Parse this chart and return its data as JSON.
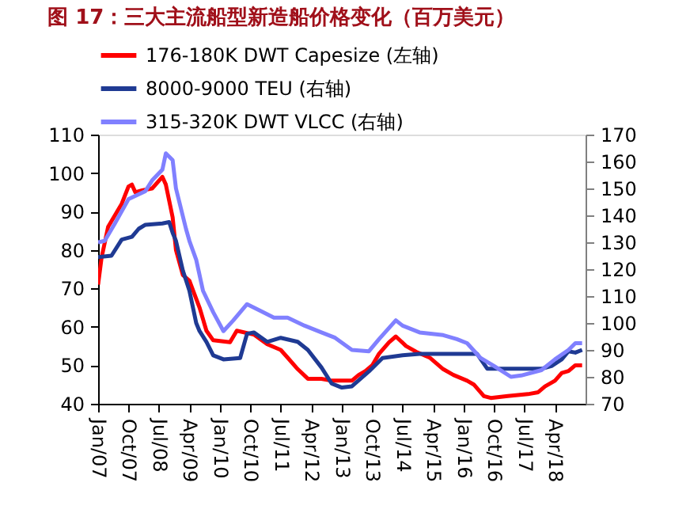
{
  "chart_data": {
    "type": "line",
    "title": "图 17：三大主流船型新造船价格变化（百万美元）",
    "xlim": [
      "2007-01",
      "2019-01"
    ],
    "xticks": [
      {
        "value": "2007-01",
        "label": "Jan/07"
      },
      {
        "value": "2007-10",
        "label": "Oct/07"
      },
      {
        "value": "2008-07",
        "label": "Jul/08"
      },
      {
        "value": "2009-04",
        "label": "Apr/09"
      },
      {
        "value": "2010-01",
        "label": "Jan/10"
      },
      {
        "value": "2010-10",
        "label": "Oct/10"
      },
      {
        "value": "2011-07",
        "label": "Jul/11"
      },
      {
        "value": "2012-04",
        "label": "Apr/12"
      },
      {
        "value": "2013-01",
        "label": "Jan/13"
      },
      {
        "value": "2013-10",
        "label": "Oct/13"
      },
      {
        "value": "2014-07",
        "label": "Jul/14"
      },
      {
        "value": "2015-04",
        "label": "Apr/15"
      },
      {
        "value": "2016-01",
        "label": "Jan/16"
      },
      {
        "value": "2016-10",
        "label": "Oct/16"
      },
      {
        "value": "2017-07",
        "label": "Jul/17"
      },
      {
        "value": "2018-04",
        "label": "Apr/18"
      }
    ],
    "ylim": [
      40,
      110
    ],
    "yticks": [
      40,
      50,
      60,
      70,
      80,
      90,
      100,
      110
    ],
    "y2lim": [
      70,
      170
    ],
    "y2ticks": [
      70,
      80,
      90,
      100,
      110,
      120,
      130,
      140,
      150,
      160,
      170
    ],
    "grid": false,
    "legend": "top",
    "marker": "none",
    "line_style": "solid",
    "series": [
      {
        "name": "176-180K DWT Capesize (左轴)",
        "color": "#ff0000",
        "axis": "y",
        "x": [
          "2007-01",
          "2007-02",
          "2007-04",
          "2007-06",
          "2007-08",
          "2007-10",
          "2007-11",
          "2007-12",
          "2008-02",
          "2008-05",
          "2008-08",
          "2008-09",
          "2008-11",
          "2008-12",
          "2009-02",
          "2009-04",
          "2009-07",
          "2009-09",
          "2009-11",
          "2010-04",
          "2010-06",
          "2010-11",
          "2011-03",
          "2011-07",
          "2011-09",
          "2011-12",
          "2012-03",
          "2012-07",
          "2012-10",
          "2013-04",
          "2013-06",
          "2013-08",
          "2013-10",
          "2013-12",
          "2014-03",
          "2014-05",
          "2014-08",
          "2014-11",
          "2015-03",
          "2015-07",
          "2015-10",
          "2016-02",
          "2016-04",
          "2016-07",
          "2016-09",
          "2017-02",
          "2017-08",
          "2017-11",
          "2018-01",
          "2018-04",
          "2018-06",
          "2018-08",
          "2018-10",
          "2018-12"
        ],
        "values": [
          71,
          78,
          86,
          89,
          92,
          96.5,
          97,
          95,
          95.5,
          96,
          99,
          97,
          88.5,
          80,
          73.5,
          72,
          65,
          59,
          56.5,
          56,
          59,
          58,
          55.5,
          54,
          52,
          49,
          46.5,
          46.5,
          46,
          46,
          47.5,
          48.5,
          50,
          53,
          56,
          57.5,
          55,
          53.5,
          52,
          49,
          47.5,
          46,
          45,
          42,
          41.5,
          42,
          42.5,
          43,
          44.5,
          46,
          48,
          48.5,
          50,
          50
        ]
      },
      {
        "name": "8000-9000 TEU (右轴)",
        "color": "#1f3a93",
        "axis": "y2",
        "x": [
          "2007-01",
          "2007-05",
          "2007-08",
          "2007-11",
          "2008-01",
          "2008-03",
          "2008-08",
          "2008-10",
          "2008-11",
          "2008-12",
          "2009-02",
          "2009-04",
          "2009-06",
          "2009-07",
          "2009-09",
          "2009-11",
          "2010-02",
          "2010-07",
          "2010-09",
          "2010-11",
          "2011-03",
          "2011-07",
          "2011-12",
          "2012-03",
          "2012-07",
          "2012-10",
          "2013-01",
          "2013-04",
          "2013-09",
          "2014-01",
          "2014-07",
          "2014-12",
          "2016-05",
          "2016-08",
          "2017-12",
          "2018-03",
          "2018-06",
          "2018-08",
          "2018-10",
          "2018-12"
        ],
        "values": [
          124.5,
          125,
          131,
          132,
          135,
          136.5,
          137,
          137.5,
          133.5,
          130.5,
          119.5,
          112,
          100,
          97,
          93,
          88,
          86.5,
          87,
          96,
          96.5,
          93,
          94.5,
          93,
          90,
          83.5,
          77.5,
          76,
          76.5,
          82,
          87,
          88,
          88.5,
          88.5,
          83,
          83,
          84,
          86.5,
          89.5,
          89,
          90
        ]
      },
      {
        "name": "315-320K DWT VLCC  (右轴)",
        "color": "#8080ff",
        "axis": "y2",
        "x": [
          "2007-01",
          "2007-03",
          "2007-06",
          "2007-10",
          "2008-03",
          "2008-05",
          "2008-08",
          "2008-09",
          "2008-11",
          "2008-12",
          "2009-03",
          "2009-04",
          "2009-06",
          "2009-08",
          "2009-11",
          "2010-02",
          "2010-05",
          "2010-09",
          "2011-01",
          "2011-05",
          "2011-09",
          "2012-02",
          "2012-07",
          "2012-11",
          "2013-04",
          "2013-09",
          "2013-12",
          "2014-05",
          "2014-07",
          "2014-12",
          "2015-07",
          "2015-11",
          "2016-02",
          "2016-06",
          "2016-10",
          "2017-03",
          "2017-06",
          "2017-12",
          "2018-04",
          "2018-08",
          "2018-10",
          "2018-12"
        ],
        "values": [
          130,
          130.5,
          137,
          146,
          149,
          153,
          157,
          163,
          160.5,
          150,
          135,
          130.5,
          123.5,
          112,
          104,
          97,
          101,
          107,
          104.5,
          102,
          102,
          99,
          96.5,
          94.5,
          90,
          89.5,
          94,
          101,
          99,
          96.5,
          95.5,
          94,
          92.5,
          87,
          84,
          80,
          80.5,
          82.5,
          86.5,
          90,
          92.5,
          92.5
        ]
      }
    ]
  }
}
